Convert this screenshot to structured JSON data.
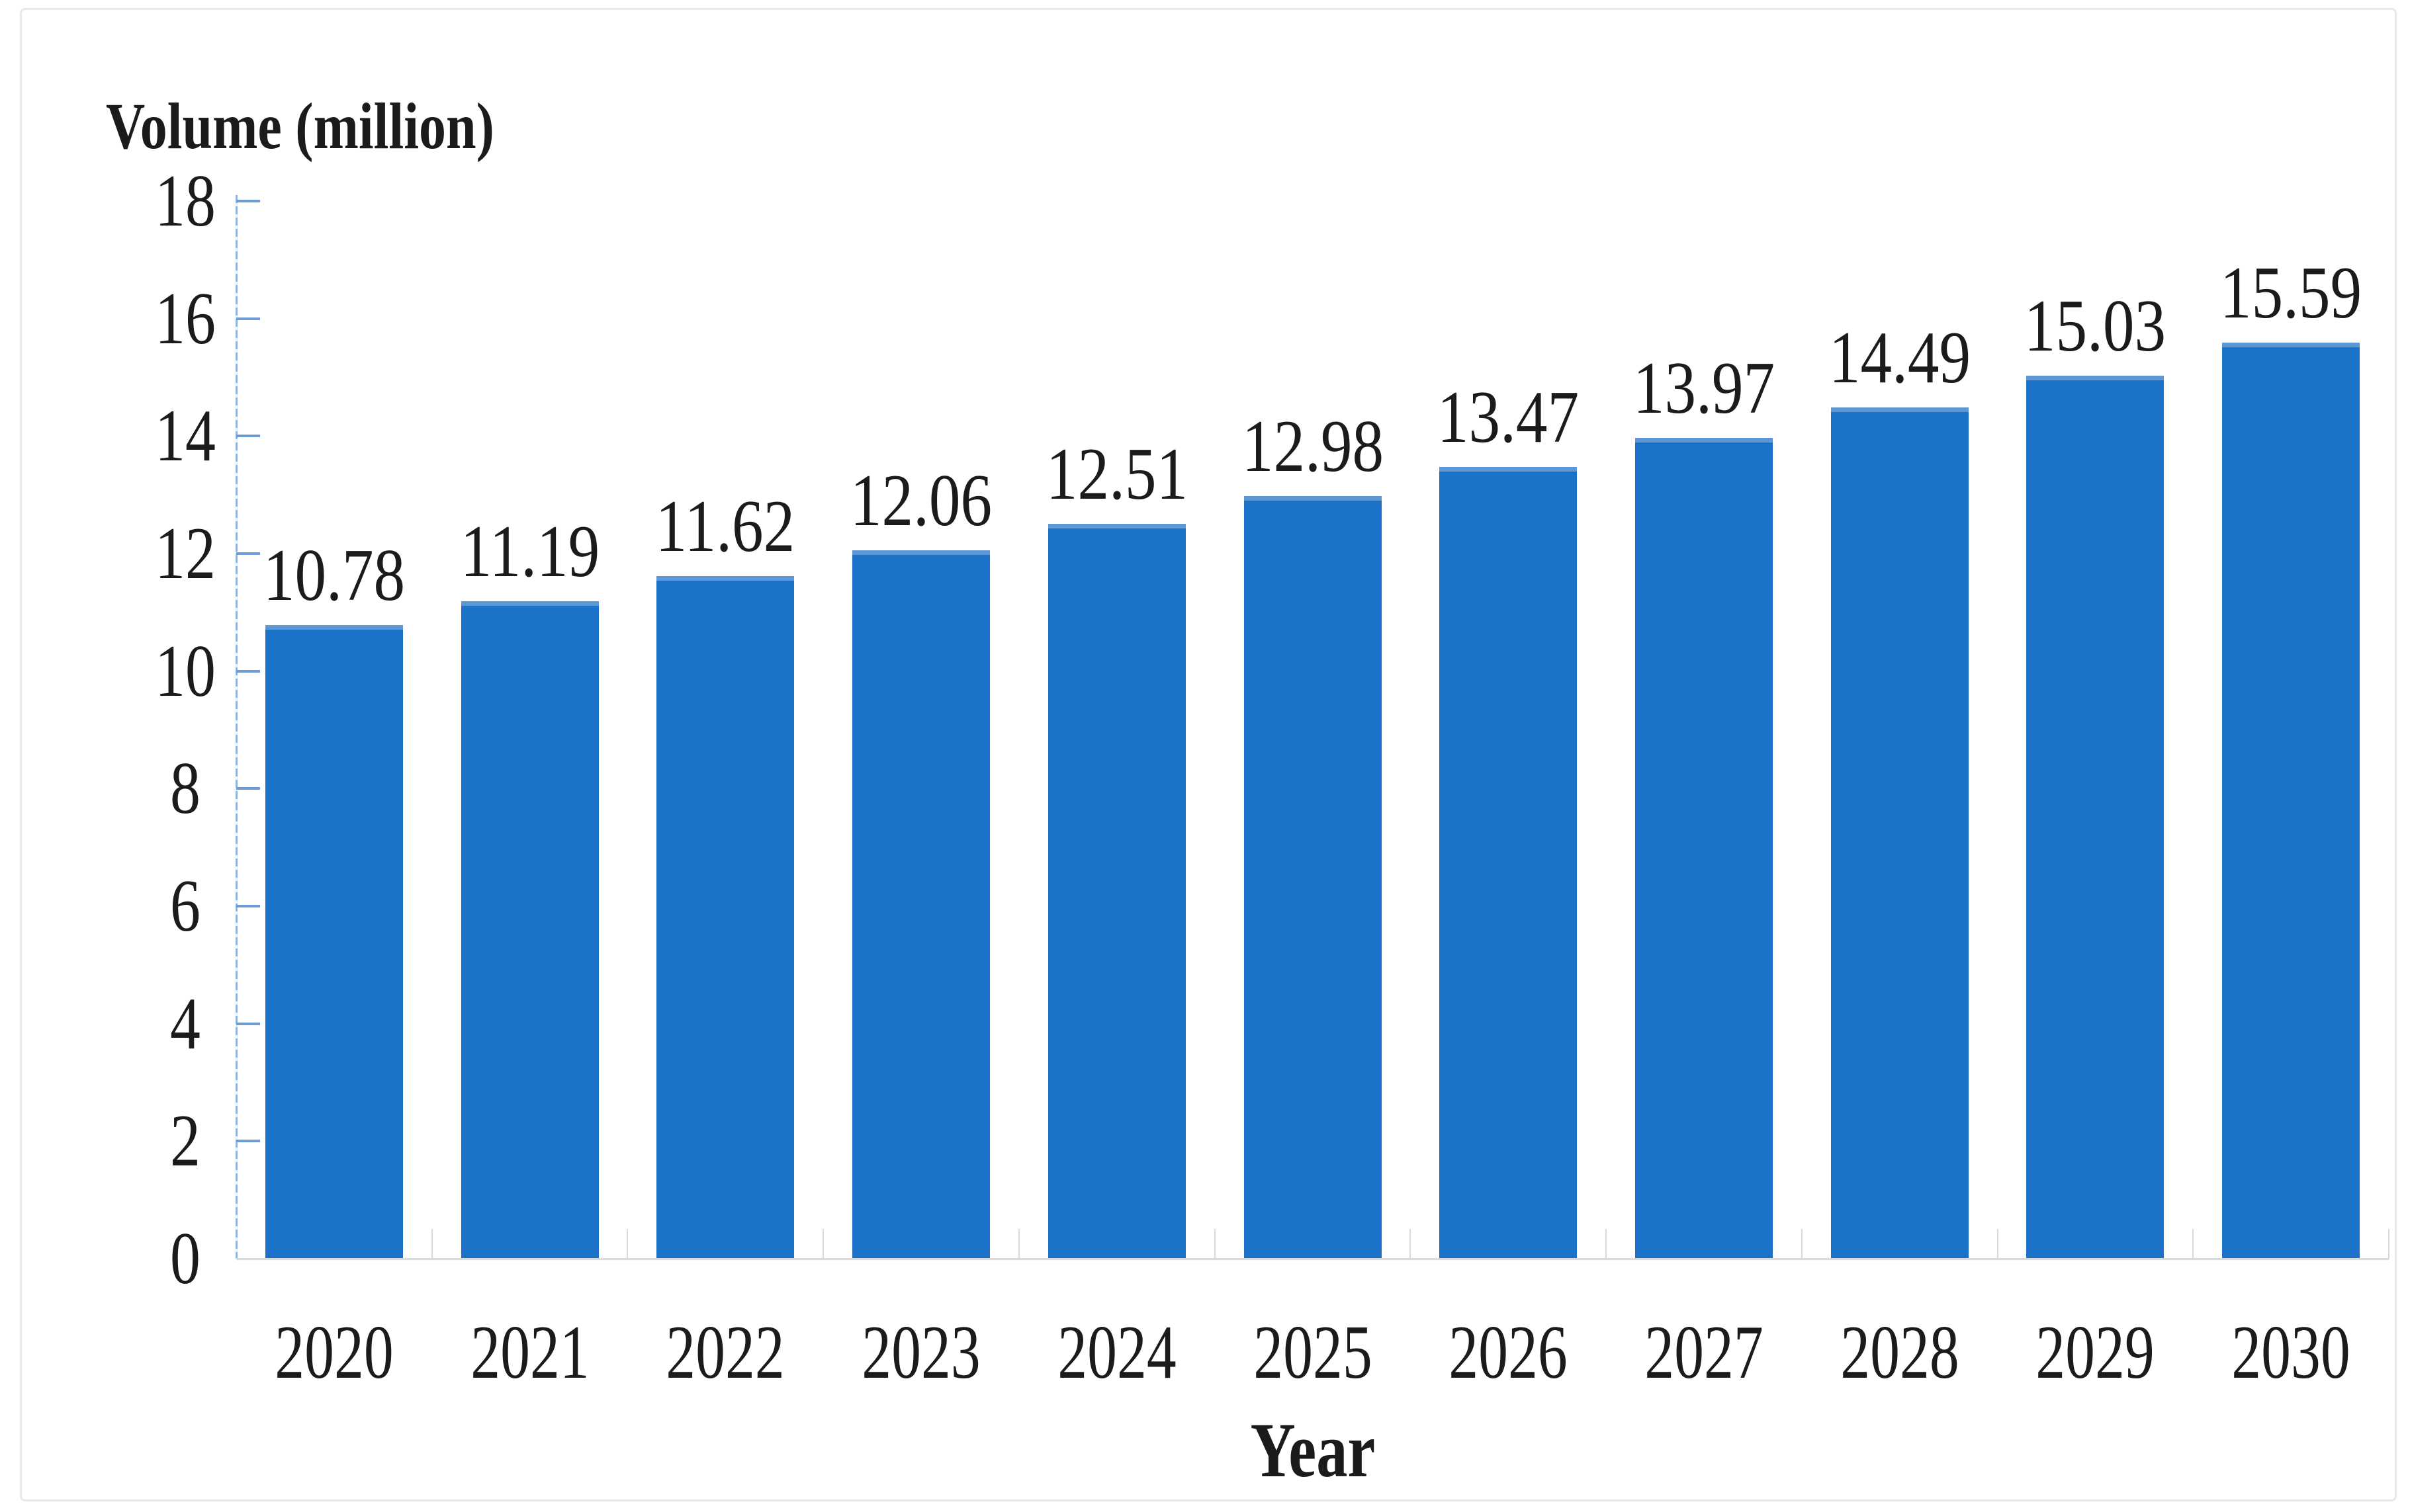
{
  "chart_data": {
    "type": "bar",
    "title": "Volume (million)",
    "xlabel": "Year",
    "categories": [
      "2020",
      "2021",
      "2022",
      "2023",
      "2024",
      "2025",
      "2026",
      "2027",
      "2028",
      "2029",
      "2030"
    ],
    "values": [
      10.78,
      11.19,
      11.62,
      12.06,
      12.51,
      12.98,
      13.47,
      13.97,
      14.49,
      15.03,
      15.59
    ],
    "value_labels": [
      "10.78",
      "11.19",
      "11.62",
      "12.06",
      "12.51",
      "12.98",
      "13.47",
      "13.97",
      "14.49",
      "15.03",
      "15.59"
    ],
    "ylim": [
      0,
      18
    ],
    "yticks": [
      0,
      2,
      4,
      6,
      8,
      10,
      12,
      14,
      16,
      18
    ],
    "grid": false,
    "legend": false,
    "colors": {
      "bar": "#1c72c8",
      "bar_top_highlight": "#5e97d6",
      "y_axis": "#8fb2e0",
      "y_tick": "#6e9cd6",
      "baseline_gray": "#d9d9d9",
      "frame": "#e8e8e8",
      "text": "#1b1b1b"
    }
  }
}
